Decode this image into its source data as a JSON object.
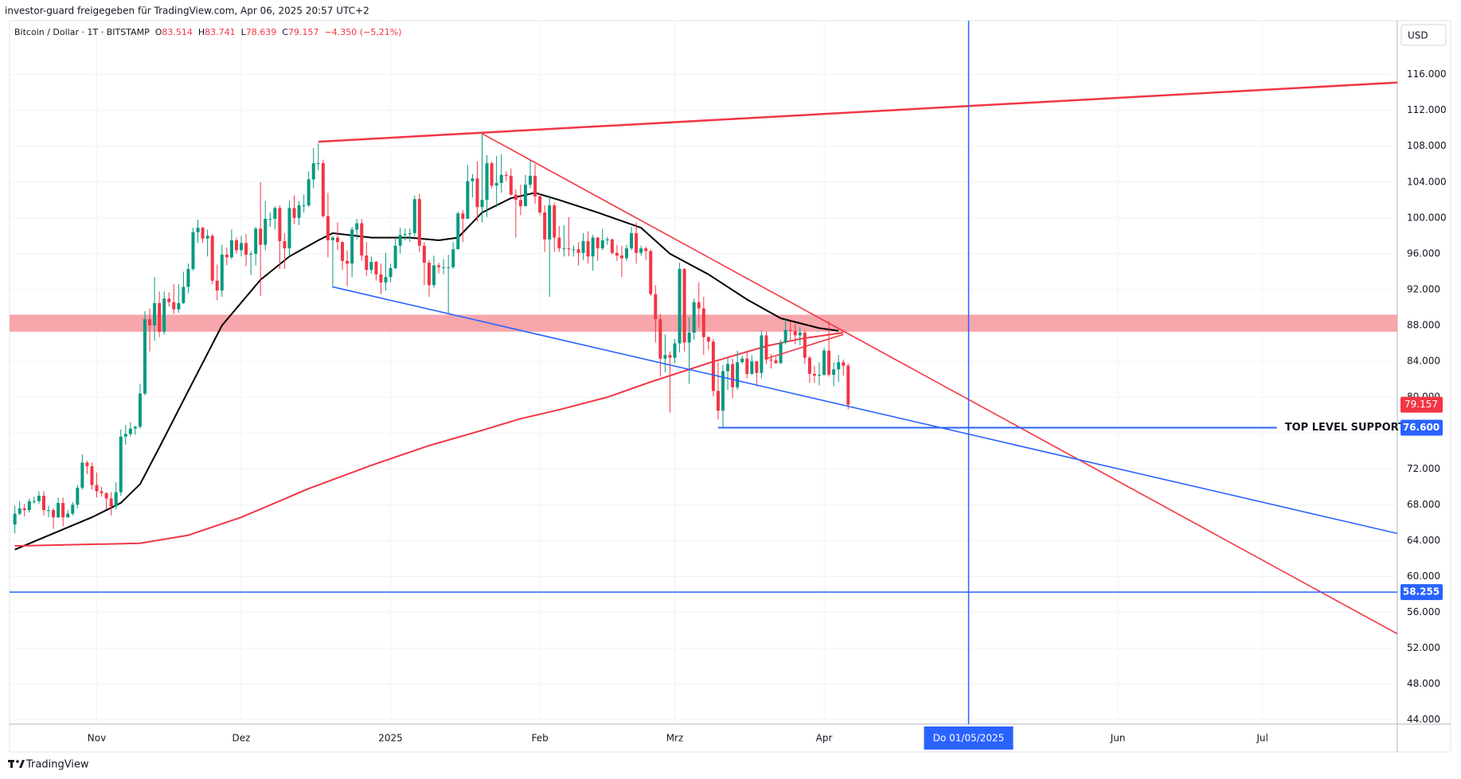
{
  "header": {
    "shared_by": "investor-guard freigegeben für TradingView.com, Apr 06, 2025 20:57 UTC+2"
  },
  "footer": {
    "brand": "TradingView"
  },
  "chart_data": {
    "type": "candlestick",
    "title": "Bitcoin / Dollar · 1T · BITSTAMP",
    "ohlc": [
      {
        "key": "O",
        "label": "83.514"
      },
      {
        "key": "H",
        "label": "83.741"
      },
      {
        "key": "L",
        "label": "78.639"
      },
      {
        "key": "C",
        "label": "79.157"
      }
    ],
    "change": "−4.350 (−5,21%)",
    "currency": "USD",
    "up_color": "#089981",
    "down_color": "#f23645",
    "grid": true,
    "xlim": [
      -1.1,
      287
    ],
    "ylim": [
      43530,
      122000
    ],
    "xticks": [
      {
        "value": 17,
        "label": "Nov"
      },
      {
        "value": 47,
        "label": "Dez"
      },
      {
        "value": 78,
        "label": "2025"
      },
      {
        "value": 109,
        "label": "Feb"
      },
      {
        "value": 137,
        "label": "Mrz"
      },
      {
        "value": 168,
        "label": "Apr"
      },
      {
        "value": 229,
        "label": "Jun"
      },
      {
        "value": 259,
        "label": "Jul"
      }
    ],
    "yticks": [
      {
        "value": 44000,
        "label": "44.000"
      },
      {
        "value": 48000,
        "label": "48.000"
      },
      {
        "value": 52000,
        "label": "52.000"
      },
      {
        "value": 56000,
        "label": "56.000"
      },
      {
        "value": 60000,
        "label": "60.000"
      },
      {
        "value": 64000,
        "label": "64.000"
      },
      {
        "value": 68000,
        "label": "68.000"
      },
      {
        "value": 72000,
        "label": "72.000"
      },
      {
        "value": 76000,
        "label": "76.000"
      },
      {
        "value": 80000,
        "label": "80.000"
      },
      {
        "value": 84000,
        "label": "84.000"
      },
      {
        "value": 88000,
        "label": "88.000"
      },
      {
        "value": 92000,
        "label": "92.000"
      },
      {
        "value": 96000,
        "label": "96.000"
      },
      {
        "value": 100000,
        "label": "100.000"
      },
      {
        "value": 104000,
        "label": "104.000"
      },
      {
        "value": 108000,
        "label": "108.000"
      },
      {
        "value": 112000,
        "label": "112.000"
      },
      {
        "value": 116000,
        "label": "116.000"
      }
    ],
    "last_price_label": "79.157",
    "candles": [
      [
        65800,
        67900,
        64800,
        67000
      ],
      [
        67000,
        68400,
        66800,
        67600
      ],
      [
        67600,
        68100,
        66700,
        67400
      ],
      [
        67400,
        68700,
        67100,
        68400
      ],
      [
        68400,
        68900,
        68100,
        68400
      ],
      [
        68400,
        69500,
        68100,
        69000
      ],
      [
        69000,
        69500,
        66800,
        67400
      ],
      [
        67400,
        67900,
        66600,
        67400
      ],
      [
        67400,
        67600,
        65300,
        66600
      ],
      [
        66600,
        68800,
        66500,
        68200
      ],
      [
        68200,
        68800,
        65600,
        66600
      ],
      [
        66600,
        67400,
        66500,
        67000
      ],
      [
        67000,
        68300,
        66800,
        68000
      ],
      [
        68000,
        70200,
        67600,
        69900
      ],
      [
        69900,
        73600,
        69700,
        72700
      ],
      [
        72700,
        72900,
        71400,
        72300
      ],
      [
        72300,
        72700,
        69700,
        70200
      ],
      [
        70200,
        71600,
        68800,
        69500
      ],
      [
        69500,
        70000,
        68900,
        69300
      ],
      [
        69300,
        69400,
        67500,
        68700
      ],
      [
        68700,
        69400,
        66800,
        67800
      ],
      [
        67800,
        70500,
        67500,
        69400
      ],
      [
        69400,
        76400,
        69000,
        75600
      ],
      [
        75600,
        76900,
        74700,
        75900
      ],
      [
        75900,
        77200,
        75600,
        76500
      ],
      [
        76500,
        76800,
        75800,
        76700
      ],
      [
        76700,
        81500,
        76500,
        80400
      ],
      [
        80400,
        89600,
        80200,
        88700
      ],
      [
        88700,
        89900,
        85100,
        88000
      ],
      [
        88000,
        93400,
        86300,
        90500
      ],
      [
        90500,
        91800,
        86700,
        87300
      ],
      [
        87300,
        91800,
        87000,
        91000
      ],
      [
        91000,
        91700,
        90100,
        90600
      ],
      [
        90600,
        92600,
        89300,
        89800
      ],
      [
        89800,
        92600,
        89400,
        90500
      ],
      [
        90500,
        94000,
        90400,
        92300
      ],
      [
        92300,
        94900,
        91600,
        94300
      ],
      [
        94300,
        98900,
        94100,
        98400
      ],
      [
        98400,
        99800,
        97200,
        98900
      ],
      [
        98900,
        99000,
        97200,
        97700
      ],
      [
        97700,
        98700,
        95700,
        98000
      ],
      [
        98000,
        98200,
        92600,
        93000
      ],
      [
        93000,
        94800,
        90800,
        91900
      ],
      [
        91900,
        97000,
        91200,
        95900
      ],
      [
        95900,
        96700,
        94700,
        95600
      ],
      [
        95600,
        98700,
        95400,
        97500
      ],
      [
        97500,
        97800,
        96000,
        96400
      ],
      [
        96400,
        98000,
        95700,
        97200
      ],
      [
        97200,
        98200,
        94600,
        95900
      ],
      [
        95900,
        96300,
        93600,
        96000
      ],
      [
        96000,
        99000,
        94700,
        98800
      ],
      [
        98800,
        104000,
        91300,
        97000
      ],
      [
        97000,
        101900,
        96400,
        99900
      ],
      [
        99900,
        100600,
        99000,
        99900
      ],
      [
        99900,
        101300,
        98700,
        101100
      ],
      [
        101100,
        101400,
        94300,
        97400
      ],
      [
        97400,
        98300,
        94300,
        96600
      ],
      [
        96600,
        101900,
        95700,
        101100
      ],
      [
        101100,
        102500,
        99300,
        100000
      ],
      [
        100000,
        101900,
        99200,
        101400
      ],
      [
        101400,
        102600,
        100600,
        101400
      ],
      [
        101400,
        105200,
        101200,
        104300
      ],
      [
        104300,
        107800,
        103300,
        106100
      ],
      [
        106100,
        108300,
        105300,
        106100
      ],
      [
        106100,
        106500,
        100000,
        100200
      ],
      [
        100200,
        102800,
        95600,
        97500
      ],
      [
        97500,
        98000,
        92200,
        97800
      ],
      [
        97800,
        99500,
        96400,
        97300
      ],
      [
        97300,
        97400,
        94200,
        95200
      ],
      [
        95200,
        96400,
        92400,
        94900
      ],
      [
        94900,
        99000,
        93400,
        98700
      ],
      [
        98700,
        99900,
        97600,
        99400
      ],
      [
        99400,
        99900,
        95200,
        95800
      ],
      [
        95800,
        97300,
        93500,
        94200
      ],
      [
        94200,
        95700,
        93800,
        95100
      ],
      [
        95100,
        95200,
        93000,
        93700
      ],
      [
        93700,
        94900,
        91500,
        92800
      ],
      [
        92800,
        96100,
        91900,
        93400
      ],
      [
        93400,
        94900,
        92800,
        94400
      ],
      [
        94400,
        97800,
        94300,
        96900
      ],
      [
        96900,
        98900,
        96000,
        98100
      ],
      [
        98100,
        98800,
        97500,
        98200
      ],
      [
        98200,
        98800,
        97300,
        98300
      ],
      [
        98300,
        102500,
        97900,
        102100
      ],
      [
        102100,
        102700,
        96200,
        96900
      ],
      [
        96900,
        97300,
        92500,
        95000
      ],
      [
        95000,
        95300,
        91200,
        92500
      ],
      [
        92500,
        95800,
        92200,
        94700
      ],
      [
        94700,
        95000,
        93800,
        94500
      ],
      [
        94500,
        95400,
        93700,
        94500
      ],
      [
        94500,
        95900,
        89300,
        94500
      ],
      [
        94500,
        97300,
        94300,
        96500
      ],
      [
        96500,
        100700,
        96500,
        100500
      ],
      [
        100500,
        100900,
        97300,
        99900
      ],
      [
        99900,
        105900,
        99900,
        104100
      ],
      [
        104100,
        104900,
        102300,
        104400
      ],
      [
        104400,
        106300,
        99600,
        101200
      ],
      [
        101200,
        109600,
        99500,
        102000
      ],
      [
        102000,
        107000,
        100100,
        106100
      ],
      [
        106100,
        106300,
        103300,
        103600
      ],
      [
        103600,
        106900,
        101200,
        103900
      ],
      [
        103900,
        107100,
        102800,
        104800
      ],
      [
        104800,
        105200,
        104100,
        104700
      ],
      [
        104700,
        105500,
        102500,
        102600
      ],
      [
        102600,
        103200,
        97800,
        102000
      ],
      [
        102000,
        103700,
        100300,
        101300
      ],
      [
        101300,
        104800,
        101300,
        103700
      ],
      [
        103700,
        106400,
        103300,
        104700
      ],
      [
        104700,
        106000,
        101600,
        102400
      ],
      [
        102400,
        102700,
        100300,
        100600
      ],
      [
        100600,
        101400,
        96200,
        97600
      ],
      [
        97600,
        102500,
        91200,
        101400
      ],
      [
        101400,
        101700,
        96200,
        97800
      ],
      [
        97800,
        99100,
        96200,
        96600
      ],
      [
        96600,
        99200,
        95700,
        96600
      ],
      [
        96600,
        100100,
        95700,
        96500
      ],
      [
        96500,
        96900,
        95700,
        96500
      ],
      [
        96500,
        97300,
        94700,
        96100
      ],
      [
        96100,
        98300,
        95300,
        97400
      ],
      [
        97400,
        98500,
        94900,
        95700
      ],
      [
        95700,
        98100,
        94100,
        97800
      ],
      [
        97800,
        97900,
        95200,
        96600
      ],
      [
        96600,
        98800,
        96400,
        97500
      ],
      [
        97500,
        97900,
        97000,
        97600
      ],
      [
        97600,
        97700,
        95900,
        96100
      ],
      [
        96100,
        97000,
        95200,
        95800
      ],
      [
        95800,
        96900,
        93400,
        95500
      ],
      [
        95500,
        97000,
        95200,
        96600
      ],
      [
        96600,
        99000,
        96400,
        98300
      ],
      [
        98300,
        99500,
        94900,
        96100
      ],
      [
        96100,
        96900,
        95800,
        96600
      ],
      [
        96600,
        96800,
        95300,
        96300
      ],
      [
        96300,
        96500,
        91300,
        91500
      ],
      [
        91500,
        92500,
        86100,
        88700
      ],
      [
        88700,
        89300,
        82300,
        84300
      ],
      [
        84300,
        87000,
        82800,
        84700
      ],
      [
        84700,
        85100,
        78300,
        84400
      ],
      [
        84400,
        86500,
        83800,
        86000
      ],
      [
        86000,
        95000,
        85000,
        94300
      ],
      [
        94300,
        94400,
        85100,
        86100
      ],
      [
        86100,
        88900,
        81500,
        87200
      ],
      [
        87200,
        91000,
        86400,
        90600
      ],
      [
        90600,
        92800,
        87800,
        89900
      ],
      [
        89900,
        91200,
        84700,
        86700
      ],
      [
        86700,
        86800,
        85300,
        86200
      ],
      [
        86200,
        86500,
        80100,
        80700
      ],
      [
        80700,
        83900,
        77500,
        78500
      ],
      [
        78500,
        83600,
        76600,
        82900
      ],
      [
        82900,
        84400,
        80800,
        83700
      ],
      [
        83700,
        84300,
        79900,
        81100
      ],
      [
        81100,
        85200,
        80800,
        83900
      ],
      [
        83900,
        84600,
        83700,
        84300
      ],
      [
        84300,
        85000,
        82100,
        82600
      ],
      [
        82600,
        84700,
        82500,
        84000
      ],
      [
        84000,
        84000,
        81200,
        82700
      ],
      [
        82700,
        87400,
        82100,
        86900
      ],
      [
        86900,
        87300,
        83700,
        84200
      ],
      [
        84200,
        84800,
        83200,
        84100
      ],
      [
        84100,
        84500,
        83700,
        83800
      ],
      [
        83800,
        86400,
        83700,
        86100
      ],
      [
        86100,
        88700,
        85900,
        87500
      ],
      [
        87500,
        88400,
        86300,
        87400
      ],
      [
        87400,
        88200,
        85900,
        86900
      ],
      [
        86900,
        87800,
        85800,
        87200
      ],
      [
        87200,
        87500,
        83700,
        84400
      ],
      [
        84400,
        84600,
        81600,
        82600
      ],
      [
        82600,
        83500,
        81600,
        82400
      ],
      [
        82400,
        83900,
        81300,
        82500
      ],
      [
        82500,
        85500,
        82400,
        85200
      ],
      [
        85200,
        88500,
        82300,
        82500
      ],
      [
        82500,
        83900,
        81200,
        83100
      ],
      [
        83100,
        84700,
        81700,
        83900
      ],
      [
        83900,
        84200,
        82400,
        83500
      ],
      [
        83514,
        83741,
        78639,
        79157
      ]
    ],
    "ma_lines": [
      {
        "color": "#000000",
        "x": [
          0,
          16,
          22,
          26,
          30,
          36,
          43,
          51,
          57,
          63,
          66,
          74,
          82,
          88,
          92,
          97,
          103,
          108,
          113,
          121,
          130,
          136,
          144,
          152,
          159,
          167,
          171
        ],
        "values": [
          63000,
          66600,
          68200,
          70300,
          74400,
          80700,
          88000,
          93100,
          95700,
          97500,
          98300,
          97800,
          97800,
          97500,
          97800,
          100600,
          102200,
          102800,
          102000,
          100600,
          98900,
          96000,
          93700,
          90900,
          88800,
          87700,
          87400
        ]
      },
      {
        "color": "#f23645",
        "x": [
          0,
          26,
          36,
          47,
          61,
          74,
          86,
          97,
          105,
          113,
          123,
          132,
          144,
          156,
          163,
          172
        ],
        "values": [
          63400,
          63700,
          64600,
          66600,
          69800,
          72400,
          74600,
          76300,
          77600,
          78600,
          80000,
          81700,
          83800,
          85700,
          86500,
          87200
        ]
      }
    ],
    "zone": {
      "color": "#f7a1a8",
      "values": [
        87300,
        89200
      ]
    },
    "trendlines": [
      {
        "color": "#f23645",
        "x": [
          63,
          287
        ],
        "values": [
          108500,
          115100
        ]
      },
      {
        "color": "#f23645",
        "x": [
          97,
          287
        ],
        "values": [
          109400,
          53600
        ]
      },
      {
        "color": "#f23645",
        "x": [
          156,
          172
        ],
        "values": [
          84300,
          87000
        ]
      },
      {
        "color": "#2962ff",
        "x": [
          66,
          287
        ],
        "values": [
          92300,
          64800
        ]
      }
    ],
    "support": {
      "color": "#2962ff",
      "x": [
        146,
        262
      ],
      "value": 76600,
      "label": "76.600",
      "text": "TOP LEVEL SUPPORT"
    },
    "hline": {
      "color": "#2962ff",
      "value": 58255,
      "label": "58.255"
    },
    "vline": {
      "color": "#2962ff",
      "x": 198,
      "label": "Do 01/05/2025"
    }
  }
}
